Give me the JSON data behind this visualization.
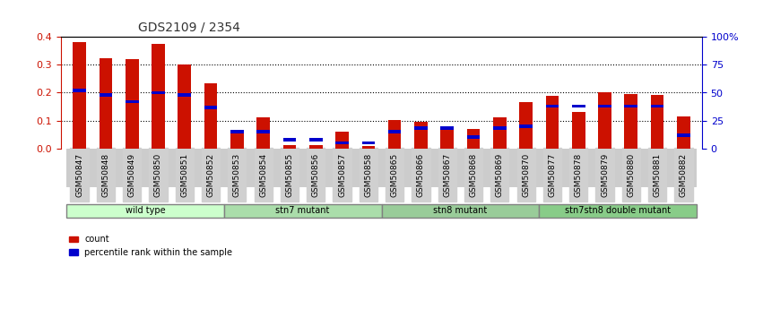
{
  "title": "GDS2109 / 2354",
  "samples": [
    "GSM50847",
    "GSM50848",
    "GSM50849",
    "GSM50850",
    "GSM50851",
    "GSM50852",
    "GSM50853",
    "GSM50854",
    "GSM50855",
    "GSM50856",
    "GSM50857",
    "GSM50858",
    "GSM50865",
    "GSM50866",
    "GSM50867",
    "GSM50868",
    "GSM50869",
    "GSM50870",
    "GSM50877",
    "GSM50878",
    "GSM50879",
    "GSM50880",
    "GSM50881",
    "GSM50882"
  ],
  "count": [
    0.383,
    0.325,
    0.32,
    0.375,
    0.302,
    0.233,
    0.065,
    0.11,
    0.012,
    0.01,
    0.06,
    0.007,
    0.102,
    0.096,
    0.067,
    0.07,
    0.112,
    0.165,
    0.19,
    0.13,
    0.2,
    0.195,
    0.192,
    0.116
  ],
  "percentile": [
    52,
    48,
    42,
    50,
    48,
    37,
    15,
    15,
    8,
    8,
    5,
    5,
    15,
    18,
    18,
    10,
    18,
    20,
    38,
    38,
    38,
    38,
    38,
    12
  ],
  "groups": [
    {
      "label": "wild type",
      "start": 0,
      "end": 6,
      "color": "#ccffcc"
    },
    {
      "label": "stn7 mutant",
      "start": 6,
      "end": 12,
      "color": "#aaddaa"
    },
    {
      "label": "stn8 mutant",
      "start": 12,
      "end": 18,
      "color": "#99cc99"
    },
    {
      "label": "stn7stn8 double mutant",
      "start": 18,
      "end": 24,
      "color": "#88cc88"
    }
  ],
  "ylim_left": [
    0,
    0.4
  ],
  "ylim_right": [
    0,
    100
  ],
  "yticks_left": [
    0,
    0.1,
    0.2,
    0.3,
    0.4
  ],
  "yticks_right": [
    0,
    25,
    50,
    75,
    100
  ],
  "bar_color": "#cc1100",
  "pct_color": "#0000cc",
  "bg_color": "#f0f0f0",
  "title_color": "#333333",
  "left_axis_color": "#cc1100",
  "right_axis_color": "#0000cc",
  "bar_width": 0.5
}
